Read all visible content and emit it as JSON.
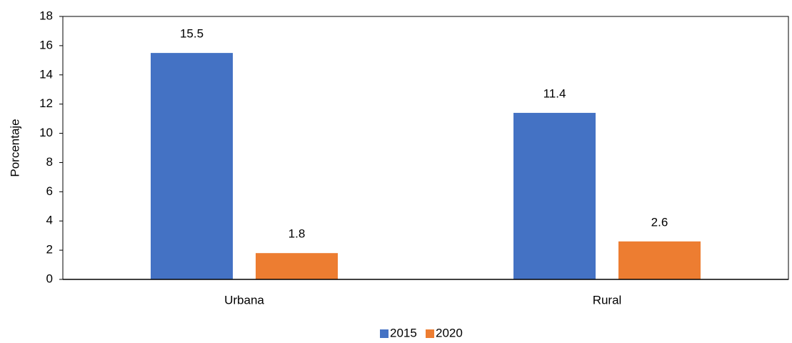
{
  "chart_data": {
    "type": "bar",
    "ylabel": "Porcentaje",
    "categories": [
      "Urbana",
      "Rural"
    ],
    "series": [
      {
        "name": "2015",
        "color": "#4472c4",
        "values": [
          15.5,
          11.4
        ]
      },
      {
        "name": "2020",
        "color": "#ed7d31",
        "values": [
          1.8,
          2.6
        ]
      }
    ],
    "ylim": [
      0,
      18
    ],
    "yticks": [
      0,
      2,
      4,
      6,
      8,
      10,
      12,
      14,
      16,
      18
    ],
    "grid": false,
    "legend": "bottom"
  }
}
